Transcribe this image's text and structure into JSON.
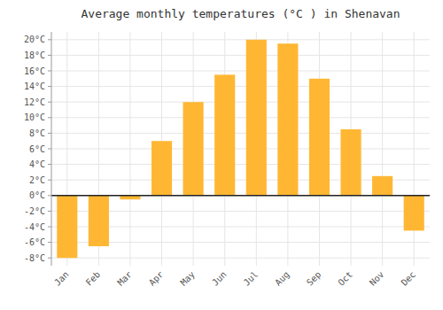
{
  "chart_data": {
    "type": "bar",
    "title": "Average monthly temperatures (°C ) in Shenavan",
    "categories": [
      "Jan",
      "Feb",
      "Mar",
      "Apr",
      "May",
      "Jun",
      "Jul",
      "Aug",
      "Sep",
      "Oct",
      "Nov",
      "Dec"
    ],
    "values": [
      -8,
      -6.5,
      -0.5,
      7,
      12,
      15.5,
      20,
      19.5,
      15,
      8.5,
      2.5,
      -4.5
    ],
    "color": "#FFB733",
    "ylim": [
      -9,
      21
    ],
    "yticks": [
      {
        "value": -8,
        "label": "-8°C"
      },
      {
        "value": -6,
        "label": "-6°C"
      },
      {
        "value": -4,
        "label": "-4°C"
      },
      {
        "value": -2,
        "label": "-2°C"
      },
      {
        "value": 0,
        "label": "0°C"
      },
      {
        "value": 2,
        "label": "2°C"
      },
      {
        "value": 4,
        "label": "4°C"
      },
      {
        "value": 6,
        "label": "6°C"
      },
      {
        "value": 8,
        "label": "8°C"
      },
      {
        "value": 10,
        "label": "10°C"
      },
      {
        "value": 12,
        "label": "12°C"
      },
      {
        "value": 14,
        "label": "14°C"
      },
      {
        "value": 16,
        "label": "16°C"
      },
      {
        "value": 18,
        "label": "18°C"
      },
      {
        "value": 20,
        "label": "20°C"
      }
    ],
    "grid": true
  }
}
